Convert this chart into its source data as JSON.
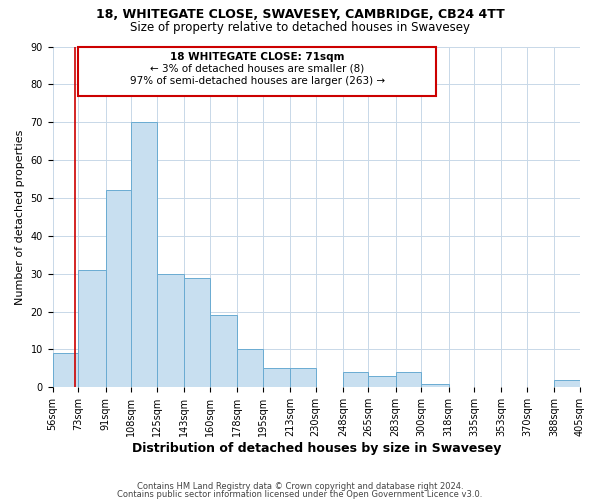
{
  "title": "18, WHITEGATE CLOSE, SWAVESEY, CAMBRIDGE, CB24 4TT",
  "subtitle": "Size of property relative to detached houses in Swavesey",
  "xlabel": "Distribution of detached houses by size in Swavesey",
  "ylabel": "Number of detached properties",
  "bar_edges": [
    56,
    73,
    91,
    108,
    125,
    143,
    160,
    178,
    195,
    213,
    230,
    248,
    265,
    283,
    300,
    318,
    335,
    353,
    370,
    388,
    405
  ],
  "bar_heights": [
    9,
    31,
    52,
    70,
    30,
    29,
    19,
    10,
    5,
    5,
    0,
    4,
    3,
    4,
    1,
    0,
    0,
    0,
    0,
    2
  ],
  "bar_color": "#c8dff0",
  "bar_edge_color": "#6aabd2",
  "vline_x": 71,
  "vline_color": "#cc0000",
  "annotation_box_color": "#cc0000",
  "annotation_text_line1": "18 WHITEGATE CLOSE: 71sqm",
  "annotation_text_line2": "← 3% of detached houses are smaller (8)",
  "annotation_text_line3": "97% of semi-detached houses are larger (263) →",
  "ylim": [
    0,
    90
  ],
  "yticks": [
    0,
    10,
    20,
    30,
    40,
    50,
    60,
    70,
    80,
    90
  ],
  "tick_labels": [
    "56sqm",
    "73sqm",
    "91sqm",
    "108sqm",
    "125sqm",
    "143sqm",
    "160sqm",
    "178sqm",
    "195sqm",
    "213sqm",
    "230sqm",
    "248sqm",
    "265sqm",
    "283sqm",
    "300sqm",
    "318sqm",
    "335sqm",
    "353sqm",
    "370sqm",
    "388sqm",
    "405sqm"
  ],
  "footer_line1": "Contains HM Land Registry data © Crown copyright and database right 2024.",
  "footer_line2": "Contains public sector information licensed under the Open Government Licence v3.0.",
  "background_color": "#ffffff",
  "grid_color": "#c8d8e8",
  "title_fontsize": 9,
  "subtitle_fontsize": 8.5,
  "xlabel_fontsize": 9,
  "ylabel_fontsize": 8,
  "tick_fontsize": 7,
  "footer_fontsize": 6,
  "annot_fontsize": 7.5
}
